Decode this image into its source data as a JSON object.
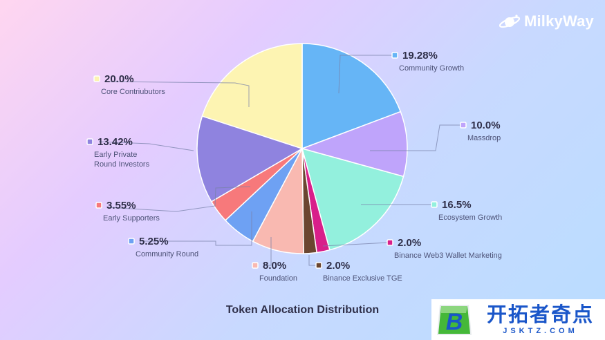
{
  "brand": {
    "name": "MilkyWay",
    "icon": "planet-icon"
  },
  "chart_data": {
    "type": "pie",
    "title": "Token Allocation Distribution",
    "start_angle_deg": 0,
    "direction": "clockwise",
    "slices": [
      {
        "label": "Community Growth",
        "value": 19.28,
        "value_label": "19.28%",
        "color": "#66b5f6"
      },
      {
        "label": "Massdrop",
        "value": 10.0,
        "value_label": "10.0%",
        "color": "#bfa4fb"
      },
      {
        "label": "Ecosystem Growth",
        "value": 16.5,
        "value_label": "16.5%",
        "color": "#93f0dd"
      },
      {
        "label": "Binance Web3 Wallet Marketing",
        "value": 2.0,
        "value_label": "2.0%",
        "color": "#d81f8a"
      },
      {
        "label": "Binance Exclusive TGE",
        "value": 2.0,
        "value_label": "2.0%",
        "color": "#6b4630"
      },
      {
        "label": "Foundation",
        "value": 8.0,
        "value_label": "8.0%",
        "color": "#f9b9b1"
      },
      {
        "label": "Community Round",
        "value": 5.25,
        "value_label": "5.25%",
        "color": "#6ea1f3"
      },
      {
        "label": "Early Supporters",
        "value": 3.55,
        "value_label": "3.55%",
        "color": "#f7797b"
      },
      {
        "label": "Early Private Round Investors",
        "value": 13.42,
        "value_label": "13.42%",
        "color": "#8f83df"
      },
      {
        "label": "Core Contriubutors",
        "value": 20.0,
        "value_label": "20.0%",
        "color": "#fdf4b2"
      }
    ],
    "legend": "callouts around pie"
  },
  "watermark": {
    "cn": "开拓者奇点",
    "en": "JSKTZ.COM",
    "logo_letter": "B",
    "icon": "b-logo-icon"
  }
}
